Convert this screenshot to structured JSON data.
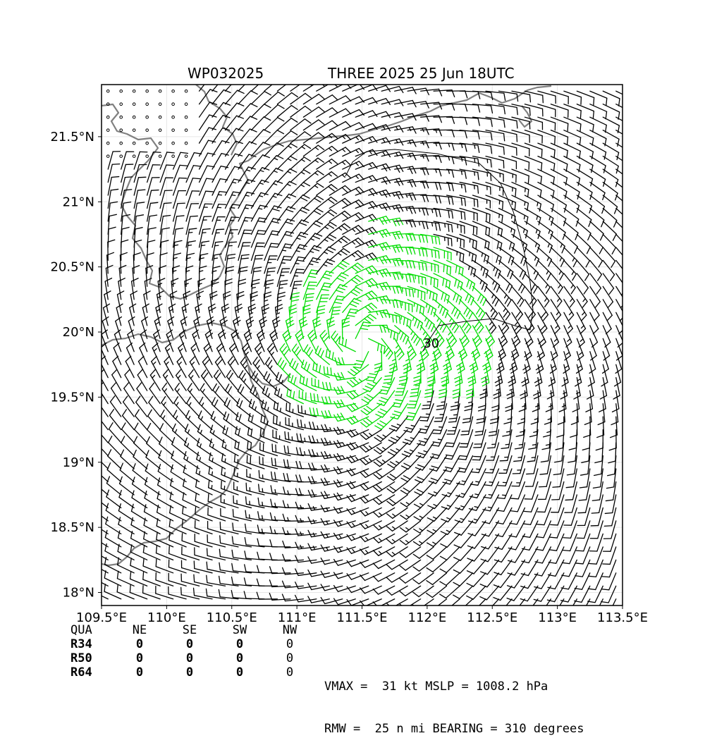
{
  "title": {
    "storm_id": "WP032025",
    "storm_label": "THREE 2025 25 Jun 18UTC"
  },
  "chart_data": {
    "type": "wind-barb-map",
    "xlim": [
      109.5,
      113.5
    ],
    "ylim": [
      17.9,
      21.9
    ],
    "x_ticks": [
      {
        "value": 109.5,
        "label": "109.5°E"
      },
      {
        "value": 110.0,
        "label": "110°E"
      },
      {
        "value": 110.5,
        "label": "110.5°E"
      },
      {
        "value": 111.0,
        "label": "111°E"
      },
      {
        "value": 111.5,
        "label": "111.5°E"
      },
      {
        "value": 112.0,
        "label": "112°E"
      },
      {
        "value": 112.5,
        "label": "112.5°E"
      },
      {
        "value": 113.0,
        "label": "113°E"
      },
      {
        "value": 113.5,
        "label": "113.5°E"
      }
    ],
    "y_ticks": [
      {
        "value": 18.0,
        "label": "18°N"
      },
      {
        "value": 18.5,
        "label": "18.5°N"
      },
      {
        "value": 19.0,
        "label": "19°N"
      },
      {
        "value": 19.5,
        "label": "19.5°N"
      },
      {
        "value": 20.0,
        "label": "20°N"
      },
      {
        "value": 20.5,
        "label": "20.5°N"
      },
      {
        "value": 21.0,
        "label": "21°N"
      },
      {
        "value": 21.5,
        "label": "21.5°N"
      }
    ],
    "grid": true,
    "storm_center": {
      "lon": 111.5,
      "lat": 19.9
    },
    "rmw_nmi": 25,
    "vmax_kt": 31,
    "barb_spacing_deg": 0.1,
    "contour_label": "30",
    "contour_label_position": {
      "lon": 111.97,
      "lat": 19.88
    },
    "coastline_color": "#808080",
    "barb_color": "#000000",
    "strong_barb_color": "#00dd00"
  },
  "wind_radii": {
    "headers": [
      "QUA",
      "NE",
      "SE",
      "SW",
      "NW"
    ],
    "rows": [
      {
        "label": "R34",
        "values": [
          "0",
          "0",
          "0",
          "0"
        ]
      },
      {
        "label": "R50",
        "values": [
          "0",
          "0",
          "0",
          "0"
        ]
      },
      {
        "label": "R64",
        "values": [
          "0",
          "0",
          "0",
          "0"
        ]
      }
    ]
  },
  "stats": {
    "line1": "VMAX =  31 kt MSLP = 1008.2 hPa",
    "line2": "RMW =  25 n mi BEARING = 310 degrees"
  }
}
